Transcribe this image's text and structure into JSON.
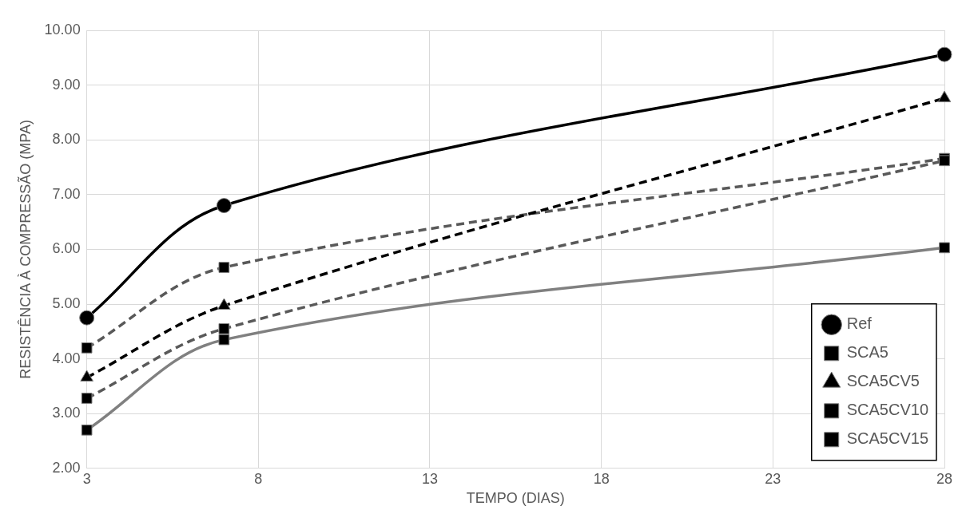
{
  "chart_data": {
    "type": "line",
    "xlabel": "TEMPO (DIAS)",
    "ylabel": "RESISTÊNCIA À COMPRESSÃO (MPA)",
    "x": [
      3,
      7,
      28
    ],
    "series": [
      {
        "name": "Ref",
        "color": "#000000",
        "values": [
          4.75,
          6.8,
          9.56
        ],
        "marker": "circle",
        "line_style": "solid"
      },
      {
        "name": "SCA5",
        "color": "#595959",
        "values": [
          4.2,
          5.67,
          7.66
        ],
        "marker": "square",
        "line_style": "dashed"
      },
      {
        "name": "SCA5CV5",
        "color": "#000000",
        "values": [
          3.66,
          4.97,
          8.76
        ],
        "marker": "triangle",
        "line_style": "dashed"
      },
      {
        "name": "SCA5CV10",
        "color": "#595959",
        "values": [
          3.28,
          4.55,
          7.62
        ],
        "marker": "square",
        "line_style": "dashed"
      },
      {
        "name": "SCA5CV15",
        "color": "#808080",
        "values": [
          2.7,
          4.35,
          6.03
        ],
        "marker": "square",
        "line_style": "solid"
      }
    ],
    "xlim": [
      3,
      28
    ],
    "xticks": [
      3,
      8,
      13,
      18,
      23,
      28
    ],
    "ylim": [
      2,
      10
    ],
    "yticks": [
      {
        "value": 2,
        "label": "2.00"
      },
      {
        "value": 3,
        "label": "3.00"
      },
      {
        "value": 4,
        "label": "4.00"
      },
      {
        "value": 5,
        "label": "5.00"
      },
      {
        "value": 6,
        "label": "6.00"
      },
      {
        "value": 7,
        "label": "7.00"
      },
      {
        "value": 8,
        "label": "8.00"
      },
      {
        "value": 9,
        "label": "9.00"
      },
      {
        "value": 10,
        "label": "10.00"
      }
    ],
    "grid": true,
    "legend": "bottom right"
  }
}
